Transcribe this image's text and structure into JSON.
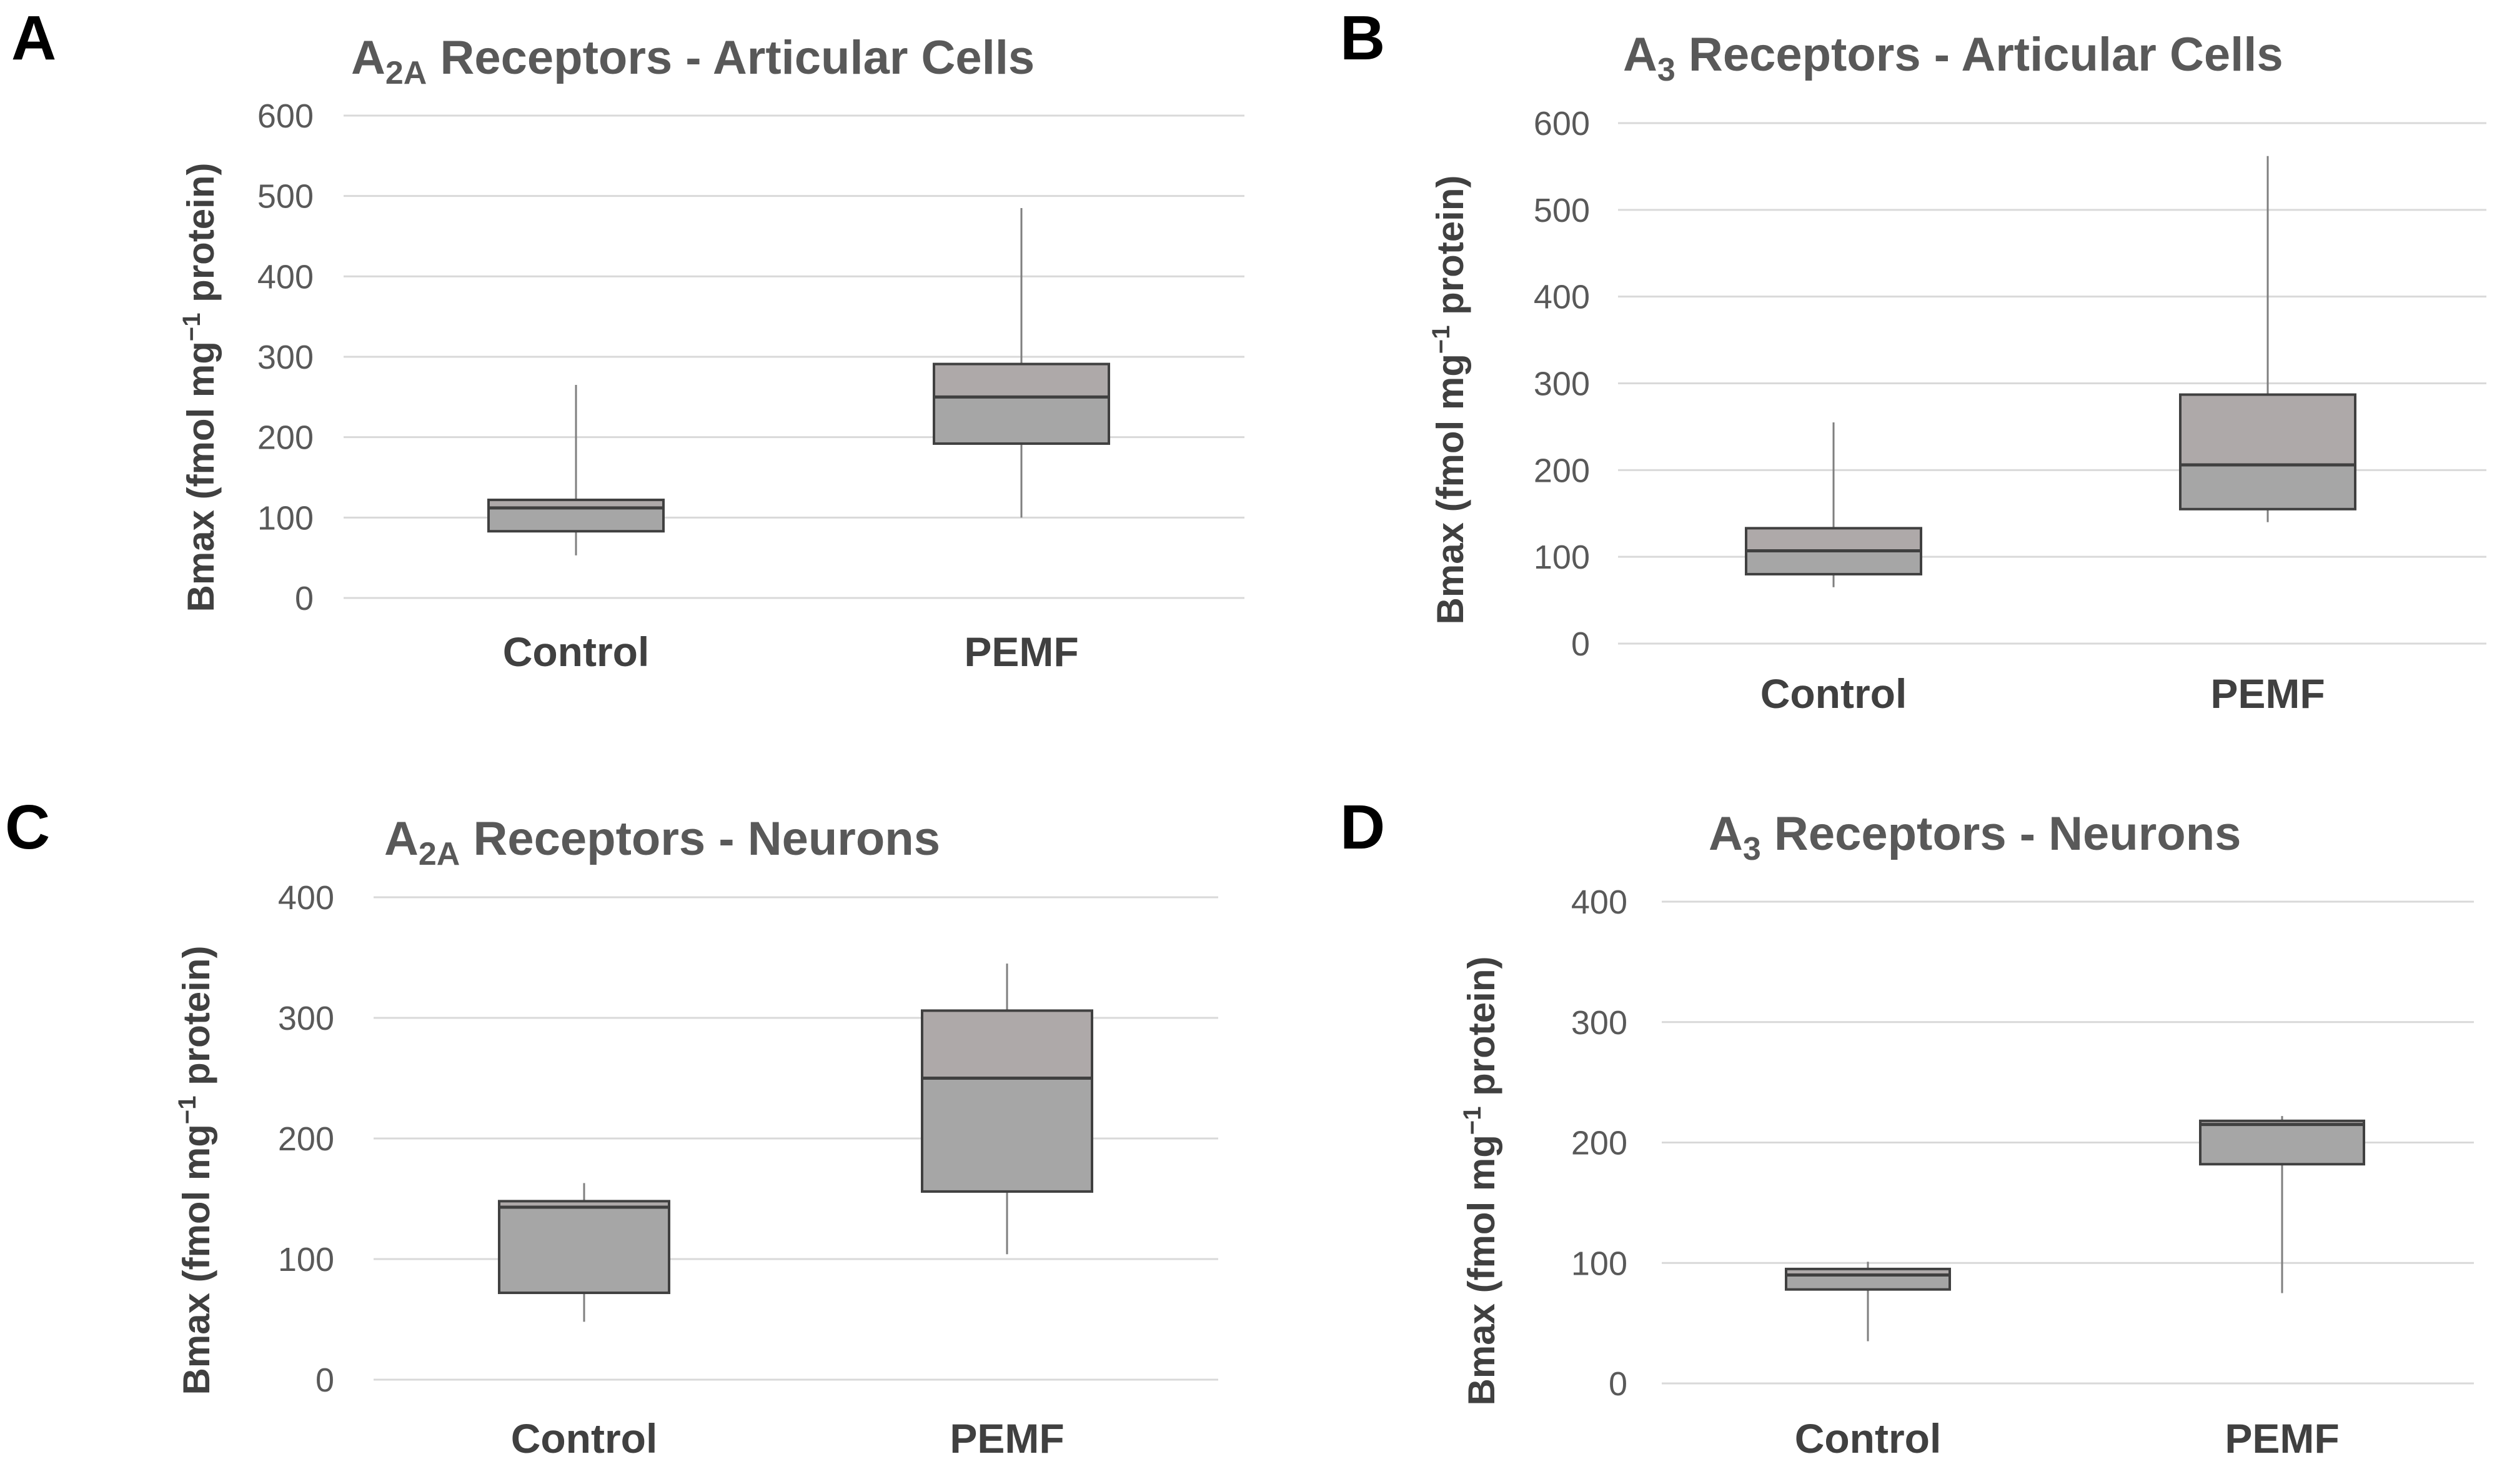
{
  "chart_data": [
    {
      "type": "box",
      "panel": "A",
      "title": {
        "base": "A",
        "sub": "2A",
        "rest": " Receptors - Articular Cells"
      },
      "ylabel": {
        "base": "Bmax (fmol mg",
        "sup": "−1",
        "rest": " protein)"
      },
      "ylim": [
        0,
        600
      ],
      "yticks": [
        0,
        100,
        200,
        300,
        400,
        500,
        600
      ],
      "grid": true,
      "categories": [
        "Control",
        "PEMF"
      ],
      "series": [
        {
          "name": "Control",
          "min": 53,
          "q1": 83,
          "median": 112,
          "q3": 122,
          "max": 265
        },
        {
          "name": "PEMF",
          "min": 100,
          "q1": 192,
          "median": 250,
          "q3": 291,
          "max": 485
        }
      ]
    },
    {
      "type": "box",
      "panel": "B",
      "title": {
        "base": "A",
        "sub": "3",
        "rest": " Receptors - Articular Cells"
      },
      "ylabel": {
        "base": "Bmax (fmol mg",
        "sup": "−1",
        "rest": " protein)"
      },
      "ylim": [
        0,
        600
      ],
      "yticks": [
        0,
        100,
        200,
        300,
        400,
        500,
        600
      ],
      "grid": true,
      "categories": [
        "Control",
        "PEMF"
      ],
      "series": [
        {
          "name": "Control",
          "min": 65,
          "q1": 80,
          "median": 107,
          "q3": 133,
          "max": 255
        },
        {
          "name": "PEMF",
          "min": 140,
          "q1": 155,
          "median": 206,
          "q3": 287,
          "max": 562
        }
      ]
    },
    {
      "type": "box",
      "panel": "C",
      "title": {
        "base": "A",
        "sub": "2A",
        "rest": " Receptors - Neurons"
      },
      "ylabel": {
        "base": "Bmax (fmol mg",
        "sup": "−1",
        "rest": " protein)"
      },
      "ylim": [
        0,
        400
      ],
      "yticks": [
        0,
        100,
        200,
        300,
        400
      ],
      "grid": true,
      "categories": [
        "Control",
        "PEMF"
      ],
      "series": [
        {
          "name": "Control",
          "min": 48,
          "q1": 72,
          "median": 143,
          "q3": 148,
          "max": 163
        },
        {
          "name": "PEMF",
          "min": 104,
          "q1": 156,
          "median": 250,
          "q3": 306,
          "max": 345
        }
      ]
    },
    {
      "type": "box",
      "panel": "D",
      "title": {
        "base": "A",
        "sub": "3",
        "rest": " Receptors - Neurons"
      },
      "ylabel": {
        "base": "Bmax (fmol mg",
        "sup": "−1",
        "rest": " protein)"
      },
      "ylim": [
        0,
        400
      ],
      "yticks": [
        0,
        100,
        200,
        300,
        400
      ],
      "grid": true,
      "categories": [
        "Control",
        "PEMF"
      ],
      "series": [
        {
          "name": "Control",
          "min": 35,
          "q1": 78,
          "median": 90,
          "q3": 95,
          "max": 101
        },
        {
          "name": "PEMF",
          "min": 75,
          "q1": 182,
          "median": 215,
          "q3": 218,
          "max": 222
        }
      ]
    }
  ]
}
